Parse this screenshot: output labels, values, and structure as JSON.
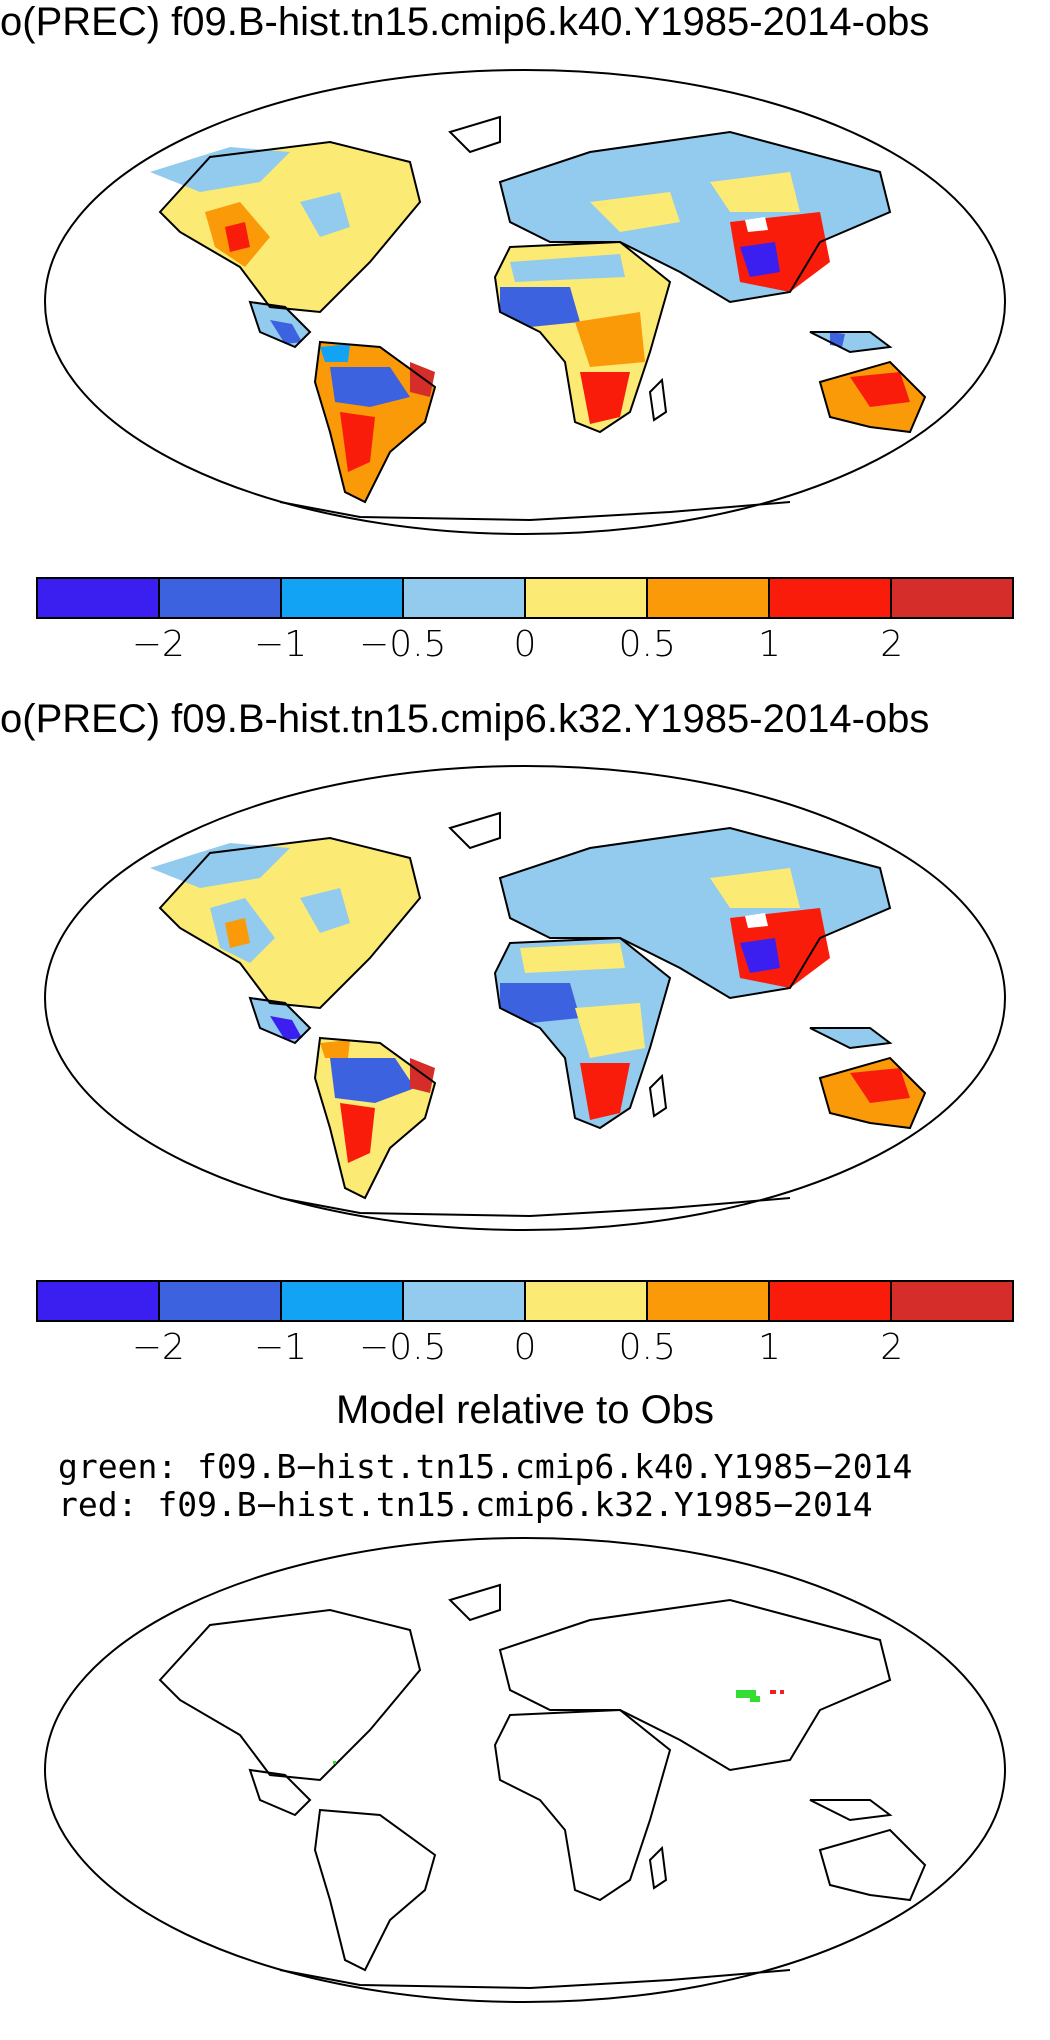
{
  "panels": [
    {
      "title": "o(PREC) f09.B-hist.tn15.cmip6.k40.Y1985-2014-obs"
    },
    {
      "title": "o(PREC) f09.B-hist.tn15.cmip6.k32.Y1985-2014-obs"
    }
  ],
  "colorbar": {
    "colors": [
      "#3a1ff0",
      "#3d62df",
      "#12a3f4",
      "#92cbee",
      "#fbea74",
      "#fb9a08",
      "#f91c0a",
      "#d52d2a"
    ],
    "tick_labels": [
      "−2",
      "−1",
      "−0.5",
      "0",
      "0.5",
      "1",
      "2"
    ]
  },
  "comparison": {
    "title": "Model relative to Obs",
    "green_line": "green: f09.B−hist.tn15.cmip6.k40.Y1985−2014",
    "red_line": "red: f09.B−hist.tn15.cmip6.k32.Y1985−2014",
    "green_color": "#33dd33",
    "red_color": "#ee2222"
  }
}
